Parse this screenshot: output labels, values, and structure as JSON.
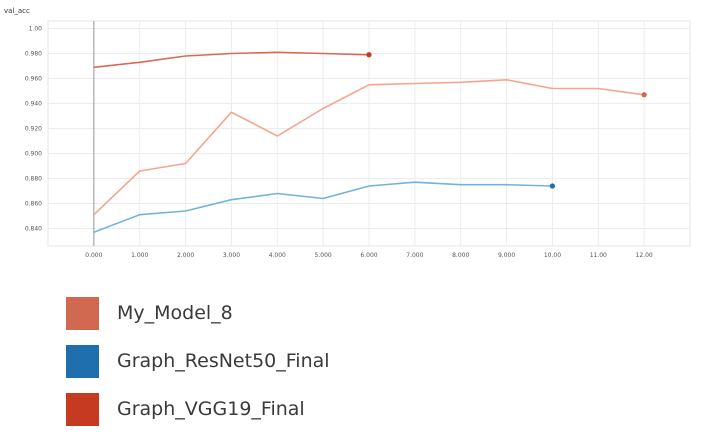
{
  "chart_data": {
    "type": "line",
    "title": "val_acc",
    "xlabel": "",
    "ylabel": "",
    "x_ticks": [
      "0.000",
      "1.000",
      "2.000",
      "3.000",
      "4.000",
      "5.000",
      "6.000",
      "7.000",
      "8.000",
      "9.000",
      "10.00",
      "11.00",
      "12.00"
    ],
    "y_ticks": [
      "0.840",
      "0.860",
      "0.880",
      "0.900",
      "0.920",
      "0.940",
      "0.960",
      "0.980",
      "1.00"
    ],
    "xlim": [
      -1,
      13
    ],
    "ylim": [
      0.826,
      1.006
    ],
    "grid": true,
    "legend_position": "bottom-left",
    "series": [
      {
        "name": "My_Model_8",
        "color": "#f5a58c",
        "swatch_color": "#d0694f",
        "x": [
          0,
          1,
          2,
          3,
          4,
          5,
          6,
          7,
          8,
          9,
          10,
          11,
          12
        ],
        "y": [
          0.851,
          0.886,
          0.892,
          0.933,
          0.914,
          0.936,
          0.955,
          0.956,
          0.957,
          0.959,
          0.952,
          0.952,
          0.947
        ]
      },
      {
        "name": "Graph_ResNet50_Final",
        "color": "#72b4d8",
        "swatch_color": "#1f6fae",
        "x": [
          0,
          1,
          2,
          3,
          4,
          5,
          6,
          7,
          8,
          9,
          10
        ],
        "y": [
          0.837,
          0.851,
          0.854,
          0.863,
          0.868,
          0.864,
          0.874,
          0.877,
          0.875,
          0.875,
          0.874
        ]
      },
      {
        "name": "Graph_VGG19_Final",
        "color": "#d96a56",
        "swatch_color": "#c63a22",
        "x": [
          0,
          1,
          2,
          3,
          4,
          5,
          6
        ],
        "y": [
          0.969,
          0.973,
          0.978,
          0.98,
          0.981,
          0.98,
          0.979
        ]
      }
    ]
  }
}
